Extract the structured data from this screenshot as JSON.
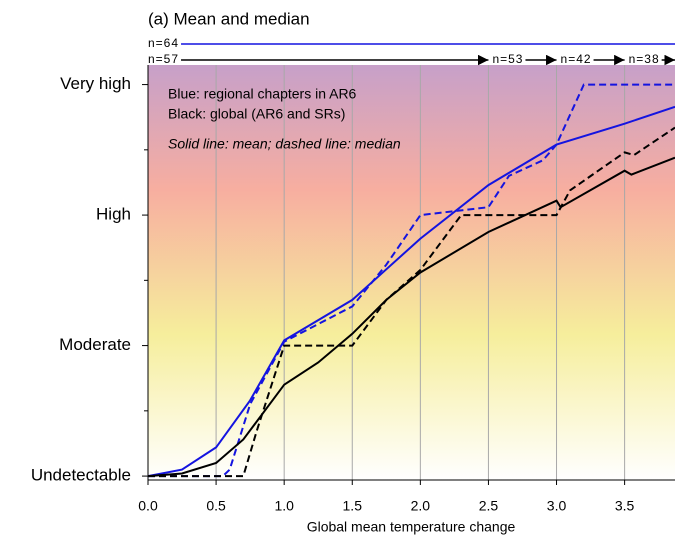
{
  "chart_data": {
    "type": "line",
    "title": "(a) Mean and median",
    "xlabel": "Global mean temperature change",
    "xlim": [
      0,
      3.87
    ],
    "ylim": [
      -0.03,
      3.15
    ],
    "xticks": [
      {
        "value": 0,
        "label": "0.0"
      },
      0.5,
      {
        "value": 1,
        "label": "1.0"
      },
      1.5,
      {
        "value": 2,
        "label": "2.0"
      },
      2.5,
      {
        "value": 3,
        "label": "3.0"
      },
      3.5
    ],
    "yticks": [
      {
        "value": 0,
        "label": "Undetectable"
      },
      {
        "value": 1,
        "label": "Moderate"
      },
      {
        "value": 2,
        "label": "High"
      },
      {
        "value": 3,
        "label": "Very high"
      }
    ],
    "yminorticks": [
      0.5,
      1.5,
      2.5
    ],
    "grid": "x",
    "notes": [
      {
        "text": "Blue: regional chapters in AR6",
        "color": "#1414e0"
      },
      {
        "text": "Black: global (AR6 and SRs)",
        "color": "#000000"
      },
      {
        "text": "Solid line: mean; dashed line: median",
        "color": "#000000",
        "italic": true
      }
    ],
    "sample_sizes": [
      {
        "color": "#1414e0",
        "items": [
          {
            "label": "n=64",
            "x": 0
          }
        ]
      },
      {
        "color": "#000000",
        "items": [
          {
            "label": "n=57",
            "x": 0
          },
          {
            "label": "n=53",
            "x": 2.5
          },
          {
            "label": "n=42",
            "x": 3.0
          },
          {
            "label": "n=38",
            "x": 3.5
          }
        ]
      }
    ],
    "series": [
      {
        "color": "#1414e0",
        "dashed": false,
        "x": [
          0,
          0.25,
          0.5,
          0.75,
          1.0,
          1.5,
          2.0,
          2.5,
          3.0,
          3.5,
          3.87
        ],
        "values": [
          0,
          0.05,
          0.22,
          0.58,
          1.04,
          1.35,
          1.82,
          2.23,
          2.54,
          2.7,
          2.83
        ]
      },
      {
        "color": "#1414e0",
        "dashed": true,
        "x": [
          0,
          0.55,
          0.6,
          0.75,
          1.0,
          1.5,
          1.75,
          2.0,
          2.5,
          2.65,
          2.9,
          3.0,
          3.2,
          3.87
        ],
        "values": [
          0,
          0,
          0.05,
          0.55,
          1.03,
          1.3,
          1.62,
          2.0,
          2.06,
          2.3,
          2.42,
          2.54,
          3.0,
          3.0
        ]
      },
      {
        "color": "#000000",
        "dashed": false,
        "x": [
          0,
          0.25,
          0.5,
          0.7,
          1.0,
          1.25,
          1.5,
          1.75,
          2.0,
          2.5,
          3.0,
          3.03,
          3.5,
          3.55,
          3.87
        ],
        "values": [
          0,
          0.02,
          0.1,
          0.28,
          0.7,
          0.87,
          1.09,
          1.35,
          1.56,
          1.87,
          2.11,
          2.06,
          2.34,
          2.31,
          2.44
        ]
      },
      {
        "color": "#000000",
        "dashed": true,
        "x": [
          0,
          0.7,
          0.8,
          1.0,
          1.5,
          1.75,
          2.0,
          2.3,
          3.0,
          3.1,
          3.5,
          3.57,
          3.87
        ],
        "values": [
          0,
          0,
          0.35,
          1.0,
          1.0,
          1.35,
          1.58,
          2.0,
          2.0,
          2.19,
          2.48,
          2.46,
          2.67
        ]
      }
    ]
  }
}
